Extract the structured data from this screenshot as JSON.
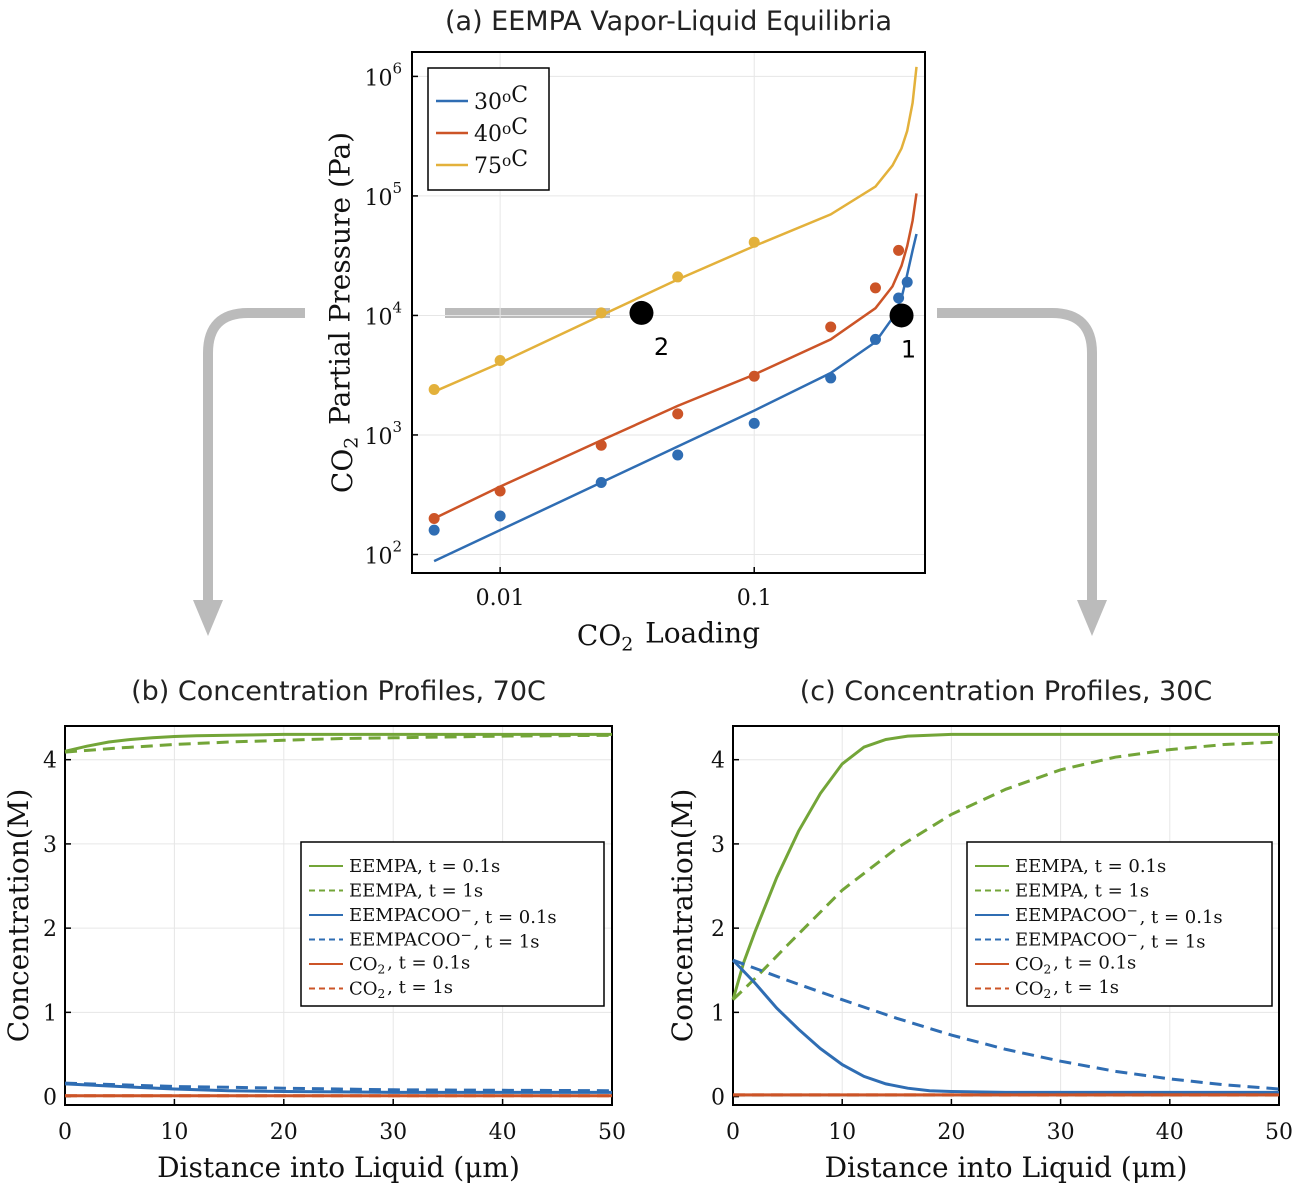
{
  "colors": {
    "t30": "#2f6db3",
    "t40": "#cc5427",
    "t75": "#e3b13b",
    "eempa": "#73a538",
    "eempacoo": "#2f6db3",
    "co2": "#cc5427",
    "arrow": "#bbbbbb"
  },
  "chart_data": [
    {
      "id": "a",
      "type": "line",
      "title": "(a) EEMPA Vapor-Liquid Equilibria",
      "xlabel": "CO₂ Loading",
      "ylabel": "CO₂ Partial Pressure (Pa)",
      "xscale": "log",
      "yscale": "log",
      "xlim": [
        0.0045,
        0.47
      ],
      "ylim": [
        70,
        1600000
      ],
      "xticks": [
        {
          "v": 0.01,
          "label": "0.01"
        },
        {
          "v": 0.1,
          "label": "0.1"
        }
      ],
      "yticks": [
        {
          "v": 100,
          "base": "10",
          "exp": "2"
        },
        {
          "v": 1000,
          "base": "10",
          "exp": "3"
        },
        {
          "v": 10000,
          "base": "10",
          "exp": "4"
        },
        {
          "v": 100000,
          "base": "10",
          "exp": "5"
        },
        {
          "v": 1000000,
          "base": "10",
          "exp": "6"
        }
      ],
      "grid": true,
      "legend": "top-left",
      "series": [
        {
          "name": "30°C",
          "color": "#2f6db3",
          "line": [
            [
              0.0055,
              88
            ],
            [
              0.01,
              160
            ],
            [
              0.025,
              400
            ],
            [
              0.05,
              800
            ],
            [
              0.1,
              1600
            ],
            [
              0.2,
              3300
            ],
            [
              0.3,
              6000
            ],
            [
              0.35,
              9500
            ],
            [
              0.38,
              14000
            ],
            [
              0.4,
              22000
            ],
            [
              0.42,
              35000
            ],
            [
              0.435,
              48000
            ]
          ],
          "points": [
            [
              0.0055,
              160
            ],
            [
              0.01,
              210
            ],
            [
              0.025,
              400
            ],
            [
              0.05,
              680
            ],
            [
              0.1,
              1250
            ],
            [
              0.2,
              3000
            ],
            [
              0.3,
              6300
            ],
            [
              0.37,
              14000
            ],
            [
              0.4,
              19000
            ]
          ]
        },
        {
          "name": "40°C",
          "color": "#cc5427",
          "line": [
            [
              0.0055,
              200
            ],
            [
              0.01,
              370
            ],
            [
              0.025,
              900
            ],
            [
              0.05,
              1750
            ],
            [
              0.1,
              3200
            ],
            [
              0.2,
              6300
            ],
            [
              0.3,
              11500
            ],
            [
              0.35,
              17500
            ],
            [
              0.38,
              26000
            ],
            [
              0.4,
              38000
            ],
            [
              0.42,
              62000
            ],
            [
              0.435,
              105000
            ]
          ],
          "points": [
            [
              0.0055,
              200
            ],
            [
              0.01,
              340
            ],
            [
              0.025,
              820
            ],
            [
              0.05,
              1500
            ],
            [
              0.1,
              3100
            ],
            [
              0.2,
              8000
            ],
            [
              0.3,
              17000
            ],
            [
              0.37,
              35000
            ]
          ]
        },
        {
          "name": "75°C",
          "color": "#e3b13b",
          "line": [
            [
              0.0055,
              2300
            ],
            [
              0.01,
              4000
            ],
            [
              0.025,
              10000
            ],
            [
              0.05,
              20000
            ],
            [
              0.1,
              38000
            ],
            [
              0.2,
              70000
            ],
            [
              0.3,
              120000
            ],
            [
              0.35,
              180000
            ],
            [
              0.38,
              250000
            ],
            [
              0.4,
              350000
            ],
            [
              0.42,
              600000
            ],
            [
              0.435,
              1200000
            ]
          ],
          "points": [
            [
              0.0055,
              2400
            ],
            [
              0.01,
              4200
            ],
            [
              0.025,
              10500
            ],
            [
              0.05,
              21000
            ],
            [
              0.1,
              41000
            ]
          ]
        }
      ],
      "markers": [
        {
          "label": "1",
          "x": 0.38,
          "y": 10000
        },
        {
          "label": "2",
          "x": 0.036,
          "y": 10500
        }
      ]
    },
    {
      "id": "b",
      "type": "line",
      "title": "(b) Concentration Profiles, 70C",
      "xlabel": "Distance into Liquid (μm)",
      "ylabel": "Concentration(M)",
      "xlim": [
        0,
        50
      ],
      "ylim": [
        -0.1,
        4.4
      ],
      "xticks": [
        0,
        10,
        20,
        30,
        40,
        50
      ],
      "yticks": [
        0,
        1,
        2,
        3,
        4
      ],
      "grid": true,
      "legend": "middle-right",
      "series": [
        {
          "name": "EEMPA, t = 0.1s",
          "color": "#73a538",
          "dash": false,
          "x": [
            0,
            2,
            4,
            6,
            8,
            10,
            12,
            15,
            20,
            25,
            30,
            40,
            50
          ],
          "values": [
            4.1,
            4.16,
            4.21,
            4.24,
            4.26,
            4.275,
            4.285,
            4.29,
            4.3,
            4.3,
            4.3,
            4.3,
            4.3
          ]
        },
        {
          "name": "EEMPA, t = 1s",
          "color": "#73a538",
          "dash": true,
          "x": [
            0,
            5,
            10,
            15,
            20,
            25,
            30,
            40,
            50
          ],
          "values": [
            4.09,
            4.14,
            4.18,
            4.21,
            4.23,
            4.25,
            4.26,
            4.28,
            4.29
          ]
        },
        {
          "name": "EEMPACOO⁻, t = 0.1s",
          "color": "#2f6db3",
          "dash": false,
          "x": [
            0,
            5,
            10,
            15,
            20,
            25,
            30,
            40,
            50
          ],
          "values": [
            0.15,
            0.12,
            0.09,
            0.07,
            0.06,
            0.055,
            0.05,
            0.05,
            0.05
          ]
        },
        {
          "name": "EEMPACOO⁻, t = 1s",
          "color": "#2f6db3",
          "dash": true,
          "x": [
            0,
            5,
            10,
            15,
            20,
            25,
            30,
            40,
            50
          ],
          "values": [
            0.16,
            0.14,
            0.12,
            0.11,
            0.1,
            0.09,
            0.08,
            0.075,
            0.07
          ]
        },
        {
          "name": "CO₂, t = 0.1s",
          "color": "#cc5427",
          "dash": false,
          "x": [
            0,
            50
          ],
          "values": [
            0.01,
            0.01
          ]
        },
        {
          "name": "CO₂, t = 1s",
          "color": "#cc5427",
          "dash": true,
          "x": [
            0,
            50
          ],
          "values": [
            0.01,
            0.01
          ]
        }
      ]
    },
    {
      "id": "c",
      "type": "line",
      "title": "(c) Concentration Profiles, 30C",
      "xlabel": "Distance into Liquid (μm)",
      "ylabel": "Concentration(M)",
      "xlim": [
        0,
        50
      ],
      "ylim": [
        -0.1,
        4.4
      ],
      "xticks": [
        0,
        10,
        20,
        30,
        40,
        50
      ],
      "yticks": [
        0,
        1,
        2,
        3,
        4
      ],
      "grid": true,
      "legend": "middle-right",
      "series": [
        {
          "name": "EEMPA, t = 0.1s",
          "color": "#73a538",
          "dash": false,
          "x": [
            0,
            1,
            2,
            4,
            6,
            8,
            10,
            12,
            14,
            16,
            18,
            20,
            25,
            30,
            40,
            50
          ],
          "values": [
            1.15,
            1.6,
            1.95,
            2.6,
            3.15,
            3.6,
            3.95,
            4.15,
            4.24,
            4.28,
            4.29,
            4.3,
            4.3,
            4.3,
            4.3,
            4.3
          ]
        },
        {
          "name": "EEMPA, t = 1s",
          "color": "#73a538",
          "dash": true,
          "x": [
            0,
            2,
            5,
            10,
            15,
            20,
            25,
            30,
            35,
            40,
            45,
            50
          ],
          "values": [
            1.15,
            1.4,
            1.8,
            2.45,
            2.95,
            3.35,
            3.65,
            3.88,
            4.03,
            4.12,
            4.18,
            4.21
          ]
        },
        {
          "name": "EEMPACOO⁻, t = 0.1s",
          "color": "#2f6db3",
          "dash": false,
          "x": [
            0,
            2,
            4,
            6,
            8,
            10,
            12,
            14,
            16,
            18,
            20,
            25,
            30,
            40,
            50
          ],
          "values": [
            1.62,
            1.35,
            1.05,
            0.8,
            0.57,
            0.38,
            0.24,
            0.15,
            0.1,
            0.07,
            0.06,
            0.05,
            0.05,
            0.05,
            0.05
          ]
        },
        {
          "name": "EEMPACOO⁻, t = 1s",
          "color": "#2f6db3",
          "dash": true,
          "x": [
            0,
            5,
            10,
            15,
            20,
            25,
            30,
            35,
            40,
            45,
            50
          ],
          "values": [
            1.62,
            1.38,
            1.15,
            0.93,
            0.73,
            0.56,
            0.42,
            0.3,
            0.21,
            0.14,
            0.09
          ]
        },
        {
          "name": "CO₂, t = 0.1s",
          "color": "#cc5427",
          "dash": false,
          "x": [
            0,
            50
          ],
          "values": [
            0.02,
            0.02
          ]
        },
        {
          "name": "CO₂, t = 1s",
          "color": "#cc5427",
          "dash": true,
          "x": [
            0,
            50
          ],
          "values": [
            0.02,
            0.02
          ]
        }
      ]
    }
  ]
}
